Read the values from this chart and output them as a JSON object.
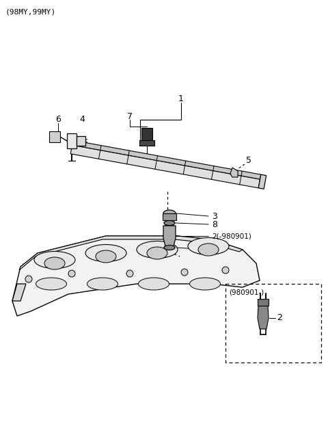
{
  "title": "(98MY,99MY)",
  "bg": "#ffffff",
  "lc": "#000000",
  "fig_w": 4.8,
  "fig_h": 6.55,
  "dpi": 100
}
